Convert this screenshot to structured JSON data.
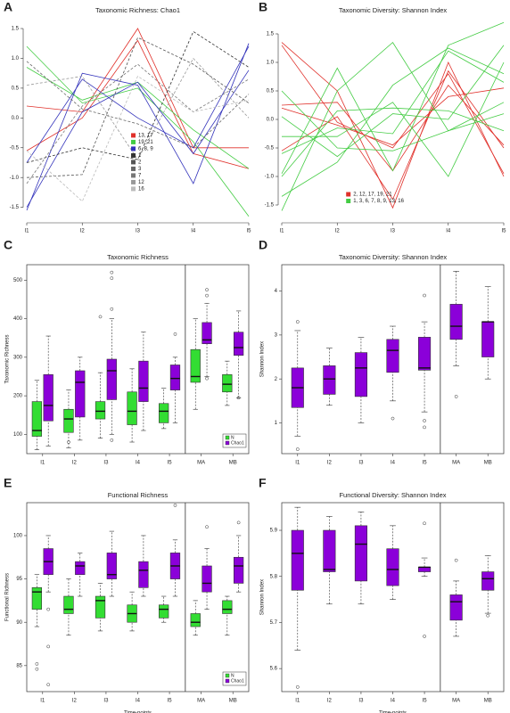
{
  "chart_data": [
    {
      "type": "line",
      "panel": "A",
      "title": "Taxonomic Richness: Chao1",
      "categories": [
        "I1",
        "I2",
        "I3",
        "I4",
        "I5"
      ],
      "ylim": [
        -1.7,
        1.65
      ],
      "yticks": [
        -1.5,
        {
          "value": -1,
          "label": "-1.0"
        },
        -0.5,
        {
          "value": 0,
          "label": "0.0"
        },
        0.5,
        {
          "value": 1,
          "label": "1.0"
        },
        1.5
      ],
      "legend": "center",
      "series": [
        {
          "name": "13, 17",
          "color": "#e0302a",
          "linestyle": "solid",
          "lines": [
            [
              0.2,
              0.1,
              1.5,
              -0.5,
              -0.5
            ],
            [
              -0.55,
              0.0,
              1.3,
              -0.6,
              -0.85
            ]
          ]
        },
        {
          "name": "19, 21",
          "color": "#44cc44",
          "linestyle": "solid",
          "lines": [
            [
              1.2,
              0.25,
              0.5,
              -0.4,
              -1.65
            ],
            [
              0.85,
              0.3,
              0.6,
              -0.2,
              -0.85
            ]
          ]
        },
        {
          "name": "6, 8, 9",
          "color": "#3333bb",
          "linestyle": "solid",
          "lines": [
            [
              -1.55,
              0.75,
              0.55,
              -1.1,
              1.25
            ],
            [
              -0.75,
              0.65,
              0.0,
              -0.5,
              1.2
            ],
            [
              -1.5,
              0.1,
              0.6,
              -0.6,
              0.8
            ]
          ]
        },
        {
          "name": "1",
          "color": "#333333",
          "linestyle": "dashed",
          "lines": [
            [
              -0.75,
              -0.5,
              -0.7,
              1.45,
              0.85
            ]
          ]
        },
        {
          "name": "2",
          "color": "#555555",
          "linestyle": "dashed",
          "lines": [
            [
              -1.0,
              -0.95,
              1.35,
              0.9,
              0.25
            ]
          ]
        },
        {
          "name": "3",
          "color": "#666666",
          "linestyle": "dashed",
          "lines": [
            [
              0.95,
              0.15,
              -0.1,
              -0.5,
              0.4
            ]
          ]
        },
        {
          "name": "7",
          "color": "#777777",
          "linestyle": "dashed",
          "lines": [
            [
              -1.1,
              0.2,
              0.9,
              0.1,
              0.65
            ]
          ]
        },
        {
          "name": "12",
          "color": "#999999",
          "linestyle": "dashed",
          "lines": [
            [
              0.55,
              0.7,
              -0.7,
              1.0,
              0.0
            ]
          ]
        },
        {
          "name": "16",
          "color": "#bbbbbb",
          "linestyle": "dashed",
          "lines": [
            [
              -0.55,
              -1.4,
              0.7,
              0.1,
              0.3
            ]
          ]
        }
      ]
    },
    {
      "type": "line",
      "panel": "B",
      "title": "Taxonomic Diversity: Shannon Index",
      "categories": [
        "I1",
        "I2",
        "I3",
        "I4",
        "I5"
      ],
      "ylim": [
        -1.75,
        1.75
      ],
      "yticks": [
        -1.5,
        {
          "value": -1,
          "label": "-1.0"
        },
        -0.5,
        {
          "value": 0,
          "label": "0.0"
        },
        0.5,
        {
          "value": 1,
          "label": "1.0"
        },
        1.5
      ],
      "legend": "bottom",
      "series": [
        {
          "name": "2, 12, 17, 19, 21",
          "color": "#e0302a",
          "linestyle": "solid",
          "lines": [
            [
              1.35,
              0.5,
              -1.55,
              1.0,
              -1.0
            ],
            [
              1.3,
              -0.05,
              -0.5,
              0.8,
              -0.95
            ],
            [
              0.25,
              0.3,
              -0.9,
              0.6,
              -0.45
            ],
            [
              0.2,
              -0.1,
              -0.45,
              0.4,
              0.55
            ],
            [
              -0.55,
              0.05,
              -1.4,
              0.85,
              -0.5
            ]
          ]
        },
        {
          "name": "1, 3, 6, 7, 8, 9, 13, 16",
          "color": "#44cc44",
          "linestyle": "solid",
          "lines": [
            [
              -1.6,
              0.5,
              1.35,
              -0.2,
              0.3
            ],
            [
              -1.35,
              -0.75,
              0.6,
              1.25,
              0.8
            ],
            [
              -0.95,
              0.9,
              -0.9,
              1.3,
              1.7
            ],
            [
              -0.6,
              -0.15,
              -0.25,
              1.2,
              0.65
            ],
            [
              -0.3,
              -0.3,
              0.3,
              -1.0,
              1.0
            ],
            [
              0.05,
              -0.65,
              0.1,
              0.0,
              1.3
            ],
            [
              -1.0,
              0.15,
              0.2,
              0.15,
              -0.2
            ],
            [
              0.5,
              -0.5,
              -0.55,
              -0.2,
              0.1
            ]
          ]
        }
      ]
    },
    {
      "type": "box",
      "panel": "C",
      "title": "Taxonomic Richness",
      "y_label": "Taxonomic Richness",
      "categories": [
        "I1",
        "I2",
        "I3",
        "I4",
        "I5",
        "MA",
        "MB"
      ],
      "separator_before_index": 5,
      "ylim": [
        50,
        540
      ],
      "yticks": [
        100,
        200,
        300,
        400,
        500
      ],
      "legend": "bottom-right",
      "series": [
        {
          "name": "N",
          "color": "#33dd33",
          "values": [
            [
              60,
              95,
              110,
              185,
              240
            ],
            [
              65,
              105,
              140,
              165,
              215
            ],
            [
              90,
              140,
              160,
              185,
              260
            ],
            [
              80,
              125,
              160,
              210,
              270
            ],
            [
              115,
              130,
              160,
              180,
              220
            ],
            [
              165,
              235,
              250,
              320,
              400
            ],
            [
              175,
              210,
              230,
              255,
              290
            ]
          ],
          "outliers": [
            [],
            [
              80
            ],
            [
              405
            ],
            [],
            [],
            [],
            []
          ]
        },
        {
          "name": "Chao1",
          "color": "#8b00d9",
          "values": [
            [
              70,
              135,
              175,
              255,
              355
            ],
            [
              85,
              145,
              235,
              265,
              300
            ],
            [
              100,
              190,
              265,
              295,
              400
            ],
            [
              110,
              185,
              220,
              290,
              365
            ],
            [
              130,
              215,
              245,
              280,
              300
            ],
            [
              250,
              335,
              345,
              390,
              440
            ],
            [
              195,
              305,
              325,
              365,
              420
            ]
          ],
          "outliers": [
            [],
            [],
            [
              85,
              425,
              505,
              520
            ],
            [],
            [
              360
            ],
            [
              245,
              460,
              475
            ],
            [
              195
            ]
          ]
        }
      ]
    },
    {
      "type": "box",
      "panel": "D",
      "title": "Taxonomic Diversity: Shannon Index",
      "y_label": "Shannon Index",
      "categories": [
        "I1",
        "I2",
        "I3",
        "I4",
        "I5",
        "MA",
        "MB"
      ],
      "separator_before_index": 5,
      "ylim": [
        0.3,
        4.6
      ],
      "yticks": [
        1,
        2,
        3,
        4
      ],
      "series": [
        {
          "color": "#8b00d9",
          "values": [
            [
              0.7,
              1.35,
              1.8,
              2.25,
              3.1
            ],
            [
              1.4,
              1.65,
              2.0,
              2.3,
              2.7
            ],
            [
              1.0,
              1.6,
              2.25,
              2.6,
              2.95
            ],
            [
              1.5,
              2.15,
              2.65,
              2.9,
              3.2
            ],
            [
              1.25,
              2.2,
              2.25,
              2.95,
              3.3
            ],
            [
              2.3,
              2.9,
              3.2,
              3.7,
              4.45
            ],
            [
              2.0,
              2.5,
              3.3,
              3.3,
              4.1
            ]
          ],
          "outliers": [
            [
              0.4,
              3.3
            ],
            [],
            [],
            [
              1.1
            ],
            [
              0.9,
              1.05,
              3.9
            ],
            [
              1.6
            ],
            []
          ]
        }
      ]
    },
    {
      "type": "box",
      "panel": "E",
      "title": "Functional Richness",
      "y_label": "Functional Richness",
      "x_label": "Time-points",
      "categories": [
        "I1",
        "I2",
        "I3",
        "I4",
        "I5",
        "MA",
        "MB"
      ],
      "separator_before_index": 5,
      "ylim": [
        82,
        103.8
      ],
      "yticks": [
        85,
        90,
        95,
        100
      ],
      "legend": "bottom-right",
      "series": [
        {
          "name": "N",
          "color": "#33dd33",
          "values": [
            [
              89.5,
              91.5,
              93.5,
              94,
              95.5
            ],
            [
              88.5,
              91,
              91.5,
              93,
              95
            ],
            [
              89,
              90.5,
              92.5,
              93,
              94.5
            ],
            [
              89,
              90,
              91,
              92,
              93.5
            ],
            [
              90,
              90.5,
              91.5,
              92,
              93
            ],
            [
              88.5,
              89.5,
              90,
              91,
              92.5
            ],
            [
              88.5,
              91,
              91.5,
              92.5,
              93
            ]
          ],
          "outliers": [
            [
              84.6,
              85.2
            ],
            [],
            [],
            [],
            [],
            [],
            []
          ]
        },
        {
          "name": "Chao1",
          "color": "#8b00d9",
          "values": [
            [
              93.5,
              95.5,
              97,
              98.5,
              100
            ],
            [
              93,
              95.5,
              96.5,
              97,
              98
            ],
            [
              93,
              95,
              95.5,
              98,
              100.5
            ],
            [
              93,
              94,
              96,
              97,
              100
            ],
            [
              93,
              95,
              96.5,
              98,
              99.5
            ],
            [
              91.5,
              93.5,
              94.5,
              96.5,
              98.5
            ],
            [
              93.5,
              94.5,
              96.5,
              97.5,
              100
            ]
          ],
          "outliers": [
            [
              82.8,
              87.2,
              91.5
            ],
            [],
            [],
            [],
            [
              103.5
            ],
            [
              101
            ],
            [
              101.5
            ]
          ]
        }
      ]
    },
    {
      "type": "box",
      "panel": "F",
      "title": "Functional Diversity: Shannon Index",
      "y_label": "Shannon Index",
      "x_label": "Time-points",
      "categories": [
        "I1",
        "I2",
        "I3",
        "I4",
        "I5",
        "MA",
        "MB"
      ],
      "separator_before_index": 5,
      "ylim": [
        5.55,
        5.96
      ],
      "yticks": [
        5.6,
        5.7,
        5.8,
        5.9
      ],
      "series": [
        {
          "color": "#8b00d9",
          "values": [
            [
              5.64,
              5.77,
              5.85,
              5.9,
              5.95
            ],
            [
              5.74,
              5.81,
              5.815,
              5.9,
              5.93
            ],
            [
              5.74,
              5.79,
              5.87,
              5.91,
              5.94
            ],
            [
              5.75,
              5.78,
              5.815,
              5.86,
              5.91
            ],
            [
              5.8,
              5.81,
              5.82,
              5.82,
              5.84
            ],
            [
              5.67,
              5.705,
              5.745,
              5.76,
              5.79
            ],
            [
              5.72,
              5.77,
              5.795,
              5.81,
              5.845
            ]
          ],
          "outliers": [
            [
              5.56
            ],
            [],
            [],
            [],
            [
              5.67,
              5.915
            ],
            [
              5.835
            ],
            [
              5.715
            ]
          ]
        }
      ]
    }
  ]
}
